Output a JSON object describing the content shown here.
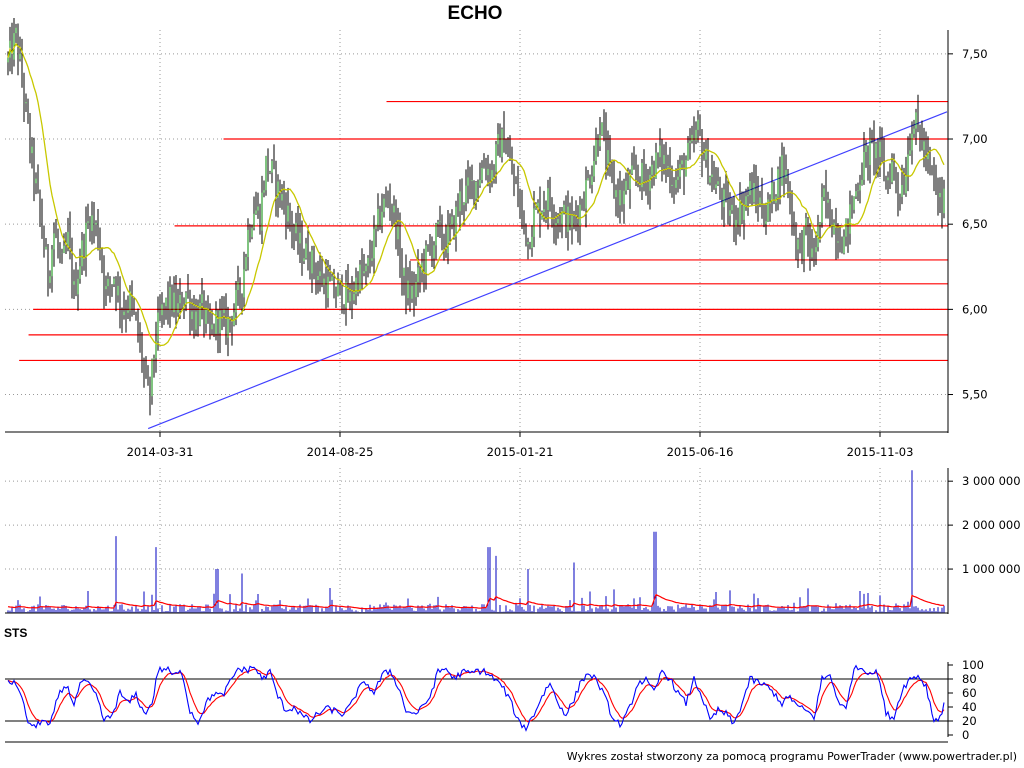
{
  "title": "ECHO",
  "footer": "Wykres został stworzony za pomocą programu PowerTrader (www.powertrader.pl)",
  "colors": {
    "candle": "#000000",
    "candle_up": "#008800",
    "ma": "#c8c800",
    "support": "#ff0000",
    "trend": "#4040ff",
    "volume": "#0000c0",
    "volume_avg": "#ff0000",
    "sts_k": "#0000ff",
    "sts_d": "#ff0000",
    "grid": "#999999"
  },
  "chart_data": [
    {
      "type": "candlestick",
      "title": "ECHO",
      "x_ticks": [
        "2014-03-31",
        "2014-08-25",
        "2015-01-21",
        "2015-06-16",
        "2015-11-03"
      ],
      "x_range": [
        "2013-12",
        "2015-12"
      ],
      "ylim": [
        5.28,
        7.64
      ],
      "y_ticks": [
        "5,50",
        "6,00",
        "6,50",
        "7,00",
        "7,50"
      ],
      "grid": true,
      "price_path": [
        [
          0,
          7.45
        ],
        [
          8,
          7.6
        ],
        [
          14,
          7.35
        ],
        [
          22,
          6.95
        ],
        [
          32,
          6.55
        ],
        [
          40,
          6.2
        ],
        [
          46,
          6.45
        ],
        [
          54,
          6.25
        ],
        [
          60,
          6.4
        ],
        [
          66,
          6.1
        ],
        [
          74,
          6.35
        ],
        [
          82,
          6.55
        ],
        [
          90,
          6.45
        ],
        [
          98,
          6.1
        ],
        [
          106,
          6.2
        ],
        [
          114,
          6.0
        ],
        [
          122,
          6.05
        ],
        [
          130,
          5.85
        ],
        [
          137,
          5.6
        ],
        [
          141,
          5.45
        ],
        [
          148,
          5.85
        ],
        [
          155,
          6.0
        ],
        [
          162,
          6.05
        ],
        [
          170,
          6.0
        ],
        [
          178,
          6.1
        ],
        [
          186,
          5.95
        ],
        [
          194,
          6.0
        ],
        [
          202,
          5.85
        ],
        [
          210,
          5.95
        ],
        [
          218,
          5.9
        ],
        [
          226,
          6.0
        ],
        [
          234,
          6.15
        ],
        [
          240,
          6.45
        ],
        [
          246,
          6.6
        ],
        [
          252,
          6.55
        ],
        [
          258,
          6.85
        ],
        [
          264,
          6.8
        ],
        [
          270,
          6.7
        ],
        [
          278,
          6.6
        ],
        [
          286,
          6.45
        ],
        [
          294,
          6.35
        ],
        [
          302,
          6.3
        ],
        [
          310,
          6.2
        ],
        [
          318,
          6.15
        ],
        [
          326,
          6.1
        ],
        [
          334,
          6.1
        ],
        [
          342,
          6.05
        ],
        [
          350,
          6.2
        ],
        [
          358,
          6.2
        ],
        [
          366,
          6.4
        ],
        [
          374,
          6.6
        ],
        [
          382,
          6.65
        ],
        [
          388,
          6.5
        ],
        [
          394,
          6.2
        ],
        [
          400,
          6.1
        ],
        [
          406,
          6.1
        ],
        [
          414,
          6.25
        ],
        [
          422,
          6.35
        ],
        [
          430,
          6.45
        ],
        [
          438,
          6.4
        ],
        [
          446,
          6.5
        ],
        [
          452,
          6.65
        ],
        [
          460,
          6.7
        ],
        [
          468,
          6.75
        ],
        [
          476,
          6.85
        ],
        [
          484,
          6.8
        ],
        [
          490,
          6.95
        ],
        [
          496,
          7.0
        ],
        [
          502,
          6.85
        ],
        [
          508,
          6.7
        ],
        [
          514,
          6.55
        ],
        [
          520,
          6.4
        ],
        [
          526,
          6.55
        ],
        [
          532,
          6.6
        ],
        [
          540,
          6.65
        ],
        [
          548,
          6.55
        ],
        [
          556,
          6.55
        ],
        [
          564,
          6.5
        ],
        [
          572,
          6.6
        ],
        [
          580,
          6.75
        ],
        [
          586,
          6.9
        ],
        [
          592,
          7.1
        ],
        [
          598,
          6.9
        ],
        [
          606,
          6.7
        ],
        [
          614,
          6.65
        ],
        [
          622,
          6.75
        ],
        [
          630,
          6.8
        ],
        [
          638,
          6.75
        ],
        [
          646,
          6.85
        ],
        [
          654,
          6.9
        ],
        [
          662,
          6.8
        ],
        [
          668,
          6.75
        ],
        [
          676,
          6.85
        ],
        [
          684,
          6.95
        ],
        [
          690,
          7.05
        ],
        [
          696,
          6.9
        ],
        [
          702,
          6.8
        ],
        [
          710,
          6.7
        ],
        [
          718,
          6.6
        ],
        [
          726,
          6.55
        ],
        [
          734,
          6.6
        ],
        [
          742,
          6.7
        ],
        [
          750,
          6.65
        ],
        [
          758,
          6.55
        ],
        [
          766,
          6.7
        ],
        [
          774,
          6.85
        ],
        [
          780,
          6.75
        ],
        [
          786,
          6.45
        ],
        [
          792,
          6.35
        ],
        [
          798,
          6.45
        ],
        [
          804,
          6.3
        ],
        [
          810,
          6.45
        ],
        [
          816,
          6.65
        ],
        [
          822,
          6.55
        ],
        [
          830,
          6.45
        ],
        [
          836,
          6.4
        ],
        [
          842,
          6.55
        ],
        [
          850,
          6.75
        ],
        [
          858,
          6.9
        ],
        [
          866,
          6.95
        ],
        [
          872,
          6.9
        ],
        [
          878,
          6.75
        ],
        [
          884,
          6.85
        ],
        [
          890,
          6.7
        ],
        [
          896,
          6.75
        ],
        [
          904,
          7.1
        ],
        [
          910,
          7.05
        ],
        [
          916,
          6.95
        ],
        [
          922,
          6.8
        ],
        [
          928,
          6.7
        ],
        [
          934,
          6.6
        ],
        [
          940,
          6.75
        ],
        [
          946,
          6.85
        ]
      ],
      "support_resistance_levels": [
        {
          "y": 7.22,
          "from_frac": 0.405
        },
        {
          "y": 7.0,
          "from_frac": 0.232
        },
        {
          "y": 6.49,
          "from_frac": 0.18
        },
        {
          "y": 6.29,
          "from_frac": 0.43
        },
        {
          "y": 6.15,
          "from_frac": 0.18
        },
        {
          "y": 6.0,
          "from_frac": 0.03
        },
        {
          "y": 5.85,
          "from_frac": 0.025
        },
        {
          "y": 5.7,
          "from_frac": 0.015
        }
      ],
      "trend_line": {
        "from": [
          0.152,
          5.3
        ],
        "to": [
          1.0,
          7.16
        ]
      }
    },
    {
      "type": "bar",
      "series": [
        {
          "values_note": "daily volume"
        }
      ],
      "ylim": [
        0,
        3300000
      ],
      "y_ticks": [
        "1 000 000",
        "2 000 000",
        "3 000 000"
      ],
      "volume_spikes": [
        [
          0.118,
          1750000
        ],
        [
          0.16,
          1500000
        ],
        [
          0.225,
          1000000
        ],
        [
          0.252,
          900000
        ],
        [
          0.514,
          1500000
        ],
        [
          0.522,
          1300000
        ],
        [
          0.556,
          1000000
        ],
        [
          0.604,
          1150000
        ],
        [
          0.69,
          1850000
        ],
        [
          0.962,
          3250000
        ]
      ]
    },
    {
      "type": "line",
      "title": "STS",
      "ylim": [
        0,
        100
      ],
      "y_ticks": [
        "0",
        "20",
        "40",
        "60",
        "80",
        "100"
      ],
      "reference_lines": [
        20,
        80
      ],
      "k_path": [
        [
          0,
          78
        ],
        [
          10,
          70
        ],
        [
          20,
          20
        ],
        [
          26,
          10
        ],
        [
          34,
          22
        ],
        [
          42,
          12
        ],
        [
          50,
          55
        ],
        [
          58,
          72
        ],
        [
          66,
          45
        ],
        [
          74,
          78
        ],
        [
          82,
          70
        ],
        [
          90,
          50
        ],
        [
          96,
          20
        ],
        [
          104,
          28
        ],
        [
          112,
          60
        ],
        [
          120,
          45
        ],
        [
          128,
          58
        ],
        [
          136,
          30
        ],
        [
          144,
          45
        ],
        [
          150,
          92
        ],
        [
          158,
          95
        ],
        [
          166,
          85
        ],
        [
          174,
          90
        ],
        [
          182,
          35
        ],
        [
          190,
          18
        ],
        [
          198,
          45
        ],
        [
          206,
          60
        ],
        [
          214,
          55
        ],
        [
          222,
          75
        ],
        [
          230,
          95
        ],
        [
          238,
          92
        ],
        [
          246,
          98
        ],
        [
          254,
          80
        ],
        [
          262,
          90
        ],
        [
          270,
          55
        ],
        [
          278,
          35
        ],
        [
          286,
          40
        ],
        [
          294,
          28
        ],
        [
          302,
          20
        ],
        [
          310,
          30
        ],
        [
          318,
          38
        ],
        [
          326,
          35
        ],
        [
          334,
          30
        ],
        [
          342,
          40
        ],
        [
          350,
          65
        ],
        [
          358,
          75
        ],
        [
          366,
          60
        ],
        [
          374,
          85
        ],
        [
          382,
          92
        ],
        [
          390,
          70
        ],
        [
          398,
          35
        ],
        [
          406,
          30
        ],
        [
          414,
          38
        ],
        [
          422,
          55
        ],
        [
          430,
          90
        ],
        [
          438,
          95
        ],
        [
          446,
          80
        ],
        [
          454,
          90
        ],
        [
          462,
          88
        ],
        [
          470,
          92
        ],
        [
          478,
          90
        ],
        [
          486,
          80
        ],
        [
          494,
          70
        ],
        [
          502,
          50
        ],
        [
          510,
          20
        ],
        [
          518,
          10
        ],
        [
          526,
          30
        ],
        [
          534,
          55
        ],
        [
          542,
          75
        ],
        [
          550,
          45
        ],
        [
          558,
          30
        ],
        [
          566,
          50
        ],
        [
          574,
          80
        ],
        [
          582,
          88
        ],
        [
          590,
          75
        ],
        [
          598,
          50
        ],
        [
          606,
          20
        ],
        [
          614,
          15
        ],
        [
          622,
          40
        ],
        [
          630,
          75
        ],
        [
          638,
          78
        ],
        [
          646,
          60
        ],
        [
          654,
          92
        ],
        [
          662,
          80
        ],
        [
          670,
          60
        ],
        [
          678,
          45
        ],
        [
          686,
          80
        ],
        [
          694,
          55
        ],
        [
          702,
          20
        ],
        [
          710,
          35
        ],
        [
          718,
          30
        ],
        [
          726,
          15
        ],
        [
          734,
          45
        ],
        [
          742,
          80
        ],
        [
          750,
          75
        ],
        [
          758,
          70
        ],
        [
          766,
          60
        ],
        [
          774,
          45
        ],
        [
          782,
          55
        ],
        [
          790,
          40
        ],
        [
          798,
          35
        ],
        [
          806,
          25
        ],
        [
          814,
          80
        ],
        [
          822,
          85
        ],
        [
          830,
          50
        ],
        [
          838,
          35
        ],
        [
          846,
          98
        ],
        [
          854,
          95
        ],
        [
          862,
          90
        ],
        [
          870,
          88
        ],
        [
          878,
          30
        ],
        [
          886,
          25
        ],
        [
          894,
          65
        ],
        [
          902,
          80
        ],
        [
          910,
          85
        ],
        [
          918,
          70
        ],
        [
          926,
          20
        ],
        [
          934,
          30
        ],
        [
          940,
          80
        ]
      ]
    }
  ]
}
